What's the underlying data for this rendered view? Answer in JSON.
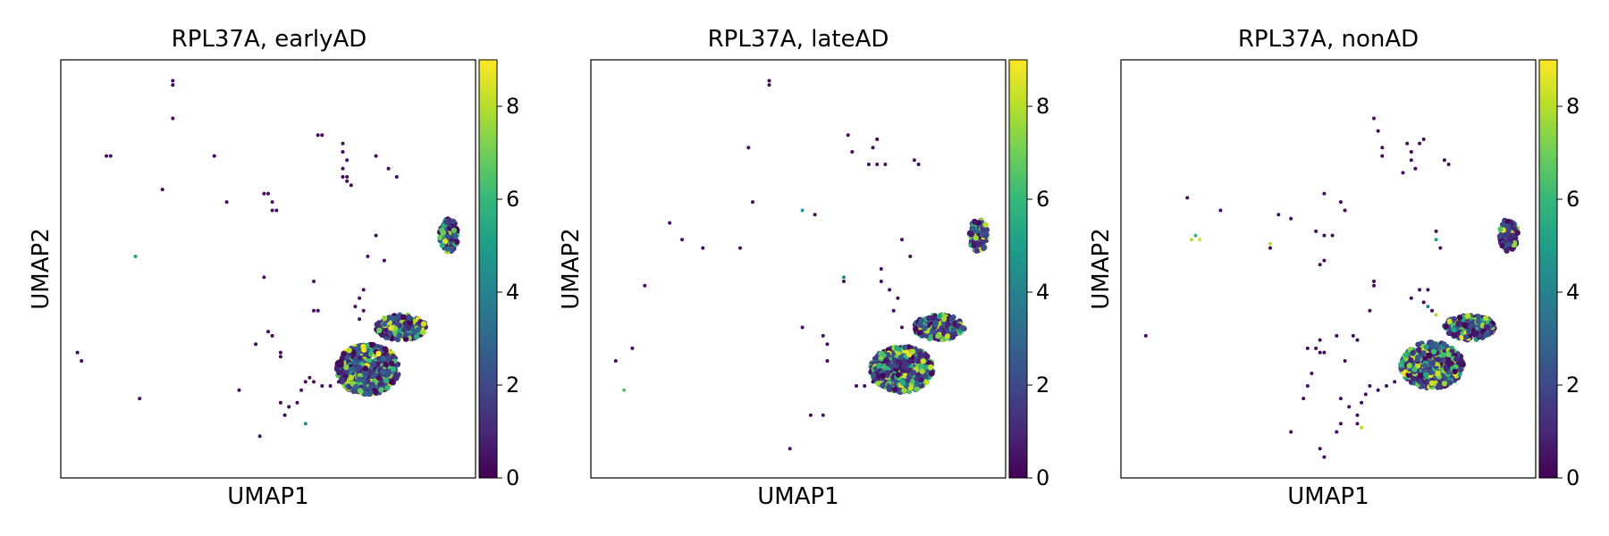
{
  "colormap": "viridis",
  "colors": {
    "viridis": [
      "#440154",
      "#482878",
      "#3e4989",
      "#31688e",
      "#26828e",
      "#1f9e89",
      "#35b779",
      "#6ece58",
      "#b5de2b",
      "#fde725"
    ],
    "frame": "#000000"
  },
  "chart_data": [
    {
      "type": "scatter",
      "title": "RPL37A, earlyAD",
      "xlabel": "UMAP1",
      "ylabel": "UMAP2",
      "color_range": [
        0,
        9
      ],
      "colorbar_ticks": [
        0,
        2,
        4,
        6,
        8
      ],
      "clusters": [
        {
          "cx": 0.74,
          "cy": 0.26,
          "rx": 0.075,
          "ry": 0.06,
          "n": 700,
          "hi": 0.35
        },
        {
          "cx": 0.82,
          "cy": 0.36,
          "rx": 0.06,
          "ry": 0.03,
          "n": 250,
          "hi": 0.3
        },
        {
          "cx": 0.935,
          "cy": 0.58,
          "rx": 0.022,
          "ry": 0.04,
          "n": 110,
          "hi": 0.25
        }
      ],
      "points": [
        [
          0.27,
          0.95,
          0.3
        ],
        [
          0.27,
          0.94,
          0.2
        ],
        [
          0.11,
          0.77,
          0.3
        ],
        [
          0.12,
          0.77,
          0.2
        ],
        [
          0.27,
          0.86,
          0.2
        ],
        [
          0.37,
          0.77,
          0.2
        ],
        [
          0.245,
          0.69,
          0.2
        ],
        [
          0.4,
          0.66,
          0.3
        ],
        [
          0.51,
          0.66,
          0.4
        ],
        [
          0.51,
          0.64,
          0.3
        ],
        [
          0.52,
          0.64,
          0.2
        ],
        [
          0.49,
          0.68,
          0.3
        ],
        [
          0.5,
          0.68,
          0.2
        ],
        [
          0.62,
          0.82,
          0.3
        ],
        [
          0.63,
          0.82,
          0.2
        ],
        [
          0.68,
          0.8,
          0.3
        ],
        [
          0.68,
          0.78,
          0.2
        ],
        [
          0.69,
          0.76,
          0.3
        ],
        [
          0.68,
          0.74,
          0.2
        ],
        [
          0.69,
          0.72,
          0.3
        ],
        [
          0.7,
          0.7,
          0.2
        ],
        [
          0.69,
          0.71,
          0.3
        ],
        [
          0.68,
          0.72,
          0.2
        ],
        [
          0.76,
          0.77,
          0.3
        ],
        [
          0.79,
          0.74,
          0.2
        ],
        [
          0.81,
          0.72,
          0.2
        ],
        [
          0.18,
          0.53,
          5.2
        ],
        [
          0.49,
          0.48,
          0.4
        ],
        [
          0.61,
          0.47,
          0.5
        ],
        [
          0.61,
          0.4,
          0.3
        ],
        [
          0.62,
          0.4,
          0.2
        ],
        [
          0.76,
          0.58,
          0.3
        ],
        [
          0.78,
          0.52,
          0.3
        ],
        [
          0.74,
          0.53,
          0.5
        ],
        [
          0.04,
          0.3,
          0.3
        ],
        [
          0.05,
          0.28,
          0.2
        ],
        [
          0.5,
          0.35,
          0.3
        ],
        [
          0.51,
          0.34,
          0.2
        ],
        [
          0.47,
          0.32,
          0.3
        ],
        [
          0.53,
          0.3,
          0.2
        ],
        [
          0.53,
          0.29,
          0.3
        ],
        [
          0.43,
          0.21,
          0.3
        ],
        [
          0.19,
          0.19,
          0.4
        ],
        [
          0.48,
          0.1,
          0.3
        ],
        [
          0.59,
          0.13,
          4.5
        ],
        [
          0.55,
          0.17,
          0.3
        ],
        [
          0.54,
          0.15,
          0.2
        ],
        [
          0.53,
          0.18,
          0.2
        ],
        [
          0.57,
          0.18,
          0.3
        ],
        [
          0.58,
          0.21,
          0.3
        ],
        [
          0.59,
          0.23,
          0.2
        ],
        [
          0.61,
          0.23,
          0.3
        ],
        [
          0.63,
          0.22,
          0.3
        ],
        [
          0.65,
          0.22,
          0.2
        ],
        [
          0.67,
          0.23,
          0.3
        ],
        [
          0.6,
          0.24,
          0.4
        ],
        [
          0.72,
          0.38,
          0.4
        ],
        [
          0.73,
          0.4,
          0.3
        ],
        [
          0.71,
          0.41,
          0.2
        ],
        [
          0.72,
          0.43,
          0.3
        ],
        [
          0.73,
          0.45,
          0.2
        ]
      ]
    },
    {
      "type": "scatter",
      "title": "RPL37A, lateAD",
      "xlabel": "UMAP1",
      "ylabel": "UMAP2",
      "color_range": [
        0,
        9
      ],
      "colorbar_ticks": [
        0,
        2,
        4,
        6,
        8
      ],
      "clusters": [
        {
          "cx": 0.75,
          "cy": 0.26,
          "rx": 0.075,
          "ry": 0.055,
          "n": 650,
          "hi": 0.35
        },
        {
          "cx": 0.84,
          "cy": 0.36,
          "rx": 0.06,
          "ry": 0.03,
          "n": 220,
          "hi": 0.3
        },
        {
          "cx": 0.935,
          "cy": 0.58,
          "rx": 0.022,
          "ry": 0.04,
          "n": 100,
          "hi": 0.25
        }
      ],
      "points": [
        [
          0.43,
          0.95,
          0.3
        ],
        [
          0.43,
          0.94,
          0.2
        ],
        [
          0.38,
          0.79,
          0.3
        ],
        [
          0.62,
          0.82,
          0.3
        ],
        [
          0.69,
          0.81,
          0.2
        ],
        [
          0.68,
          0.79,
          0.3
        ],
        [
          0.63,
          0.78,
          0.2
        ],
        [
          0.67,
          0.75,
          0.3
        ],
        [
          0.69,
          0.75,
          0.2
        ],
        [
          0.71,
          0.75,
          0.3
        ],
        [
          0.78,
          0.76,
          0.3
        ],
        [
          0.79,
          0.75,
          0.2
        ],
        [
          0.39,
          0.66,
          0.3
        ],
        [
          0.51,
          0.64,
          5.0
        ],
        [
          0.54,
          0.63,
          0.3
        ],
        [
          0.19,
          0.61,
          0.3
        ],
        [
          0.22,
          0.57,
          0.4
        ],
        [
          0.27,
          0.55,
          0.3
        ],
        [
          0.36,
          0.55,
          0.3
        ],
        [
          0.13,
          0.46,
          0.4
        ],
        [
          0.61,
          0.48,
          4.0
        ],
        [
          0.61,
          0.47,
          0.3
        ],
        [
          0.7,
          0.5,
          0.3
        ],
        [
          0.75,
          0.57,
          0.3
        ],
        [
          0.77,
          0.53,
          0.3
        ],
        [
          0.51,
          0.36,
          0.3
        ],
        [
          0.56,
          0.34,
          0.3
        ],
        [
          0.57,
          0.32,
          0.2
        ],
        [
          0.1,
          0.31,
          0.3
        ],
        [
          0.06,
          0.28,
          0.3
        ],
        [
          0.57,
          0.28,
          0.3
        ],
        [
          0.08,
          0.21,
          6.5
        ],
        [
          0.56,
          0.15,
          0.4
        ],
        [
          0.53,
          0.15,
          0.3
        ],
        [
          0.48,
          0.07,
          0.3
        ],
        [
          0.64,
          0.22,
          0.4
        ],
        [
          0.66,
          0.22,
          0.3
        ],
        [
          0.68,
          0.23,
          0.3
        ],
        [
          0.75,
          0.36,
          0.4
        ],
        [
          0.73,
          0.4,
          0.3
        ],
        [
          0.74,
          0.43,
          0.3
        ],
        [
          0.83,
          0.39,
          0.3
        ],
        [
          0.82,
          0.37,
          0.2
        ],
        [
          0.7,
          0.47,
          0.3
        ],
        [
          0.72,
          0.45,
          0.3
        ]
      ]
    },
    {
      "type": "scatter",
      "title": "RPL37A, nonAD",
      "xlabel": "UMAP1",
      "ylabel": "UMAP2",
      "color_range": [
        0,
        9
      ],
      "colorbar_ticks": [
        0,
        2,
        4,
        6,
        8
      ],
      "clusters": [
        {
          "cx": 0.75,
          "cy": 0.27,
          "rx": 0.075,
          "ry": 0.055,
          "n": 650,
          "hi": 0.35
        },
        {
          "cx": 0.84,
          "cy": 0.36,
          "rx": 0.06,
          "ry": 0.03,
          "n": 220,
          "hi": 0.3
        },
        {
          "cx": 0.935,
          "cy": 0.58,
          "rx": 0.022,
          "ry": 0.04,
          "n": 100,
          "hi": 0.25
        }
      ],
      "points": [
        [
          0.61,
          0.86,
          0.3
        ],
        [
          0.62,
          0.83,
          0.2
        ],
        [
          0.63,
          0.79,
          0.3
        ],
        [
          0.63,
          0.77,
          0.2
        ],
        [
          0.69,
          0.8,
          0.3
        ],
        [
          0.7,
          0.78,
          0.2
        ],
        [
          0.7,
          0.76,
          0.3
        ],
        [
          0.71,
          0.74,
          0.2
        ],
        [
          0.72,
          0.8,
          0.3
        ],
        [
          0.73,
          0.81,
          0.2
        ],
        [
          0.78,
          0.76,
          0.3
        ],
        [
          0.79,
          0.75,
          0.2
        ],
        [
          0.68,
          0.73,
          0.2
        ],
        [
          0.16,
          0.67,
          0.3
        ],
        [
          0.24,
          0.64,
          0.3
        ],
        [
          0.49,
          0.68,
          0.3
        ],
        [
          0.53,
          0.66,
          0.2
        ],
        [
          0.38,
          0.63,
          0.3
        ],
        [
          0.41,
          0.62,
          0.3
        ],
        [
          0.54,
          0.64,
          0.2
        ],
        [
          0.17,
          0.57,
          8.0
        ],
        [
          0.18,
          0.58,
          6.0
        ],
        [
          0.19,
          0.57,
          8.5
        ],
        [
          0.36,
          0.56,
          8.0
        ],
        [
          0.36,
          0.55,
          0.3
        ],
        [
          0.47,
          0.59,
          0.3
        ],
        [
          0.49,
          0.58,
          0.2
        ],
        [
          0.51,
          0.58,
          0.3
        ],
        [
          0.76,
          0.59,
          0.3
        ],
        [
          0.76,
          0.57,
          5.0
        ],
        [
          0.77,
          0.55,
          0.3
        ],
        [
          0.48,
          0.51,
          0.3
        ],
        [
          0.49,
          0.52,
          0.2
        ],
        [
          0.61,
          0.47,
          0.3
        ],
        [
          0.61,
          0.46,
          0.2
        ],
        [
          0.6,
          0.4,
          0.3
        ],
        [
          0.74,
          0.45,
          0.3
        ],
        [
          0.74,
          0.41,
          4.0
        ],
        [
          0.75,
          0.4,
          0.3
        ],
        [
          0.76,
          0.39,
          8.0
        ],
        [
          0.06,
          0.34,
          0.3
        ],
        [
          0.48,
          0.33,
          0.3
        ],
        [
          0.47,
          0.31,
          0.2
        ],
        [
          0.48,
          0.3,
          0.3
        ],
        [
          0.49,
          0.3,
          0.2
        ],
        [
          0.45,
          0.31,
          0.2
        ],
        [
          0.52,
          0.34,
          0.3
        ],
        [
          0.46,
          0.25,
          0.3
        ],
        [
          0.45,
          0.22,
          0.3
        ],
        [
          0.44,
          0.19,
          0.3
        ],
        [
          0.54,
          0.28,
          0.3
        ],
        [
          0.56,
          0.34,
          0.3
        ],
        [
          0.57,
          0.33,
          0.2
        ],
        [
          0.53,
          0.19,
          0.3
        ],
        [
          0.55,
          0.17,
          0.3
        ],
        [
          0.53,
          0.13,
          0.3
        ],
        [
          0.52,
          0.11,
          0.2
        ],
        [
          0.41,
          0.11,
          0.3
        ],
        [
          0.48,
          0.07,
          0.3
        ],
        [
          0.49,
          0.05,
          0.3
        ],
        [
          0.58,
          0.12,
          8.0
        ],
        [
          0.57,
          0.13,
          0.3
        ],
        [
          0.57,
          0.15,
          0.3
        ],
        [
          0.58,
          0.18,
          0.2
        ],
        [
          0.59,
          0.2,
          0.3
        ],
        [
          0.6,
          0.22,
          0.3
        ],
        [
          0.62,
          0.21,
          0.3
        ],
        [
          0.64,
          0.22,
          0.3
        ],
        [
          0.66,
          0.23,
          0.2
        ],
        [
          0.7,
          0.43,
          0.3
        ],
        [
          0.72,
          0.45,
          0.3
        ],
        [
          0.73,
          0.42,
          0.2
        ]
      ]
    }
  ]
}
